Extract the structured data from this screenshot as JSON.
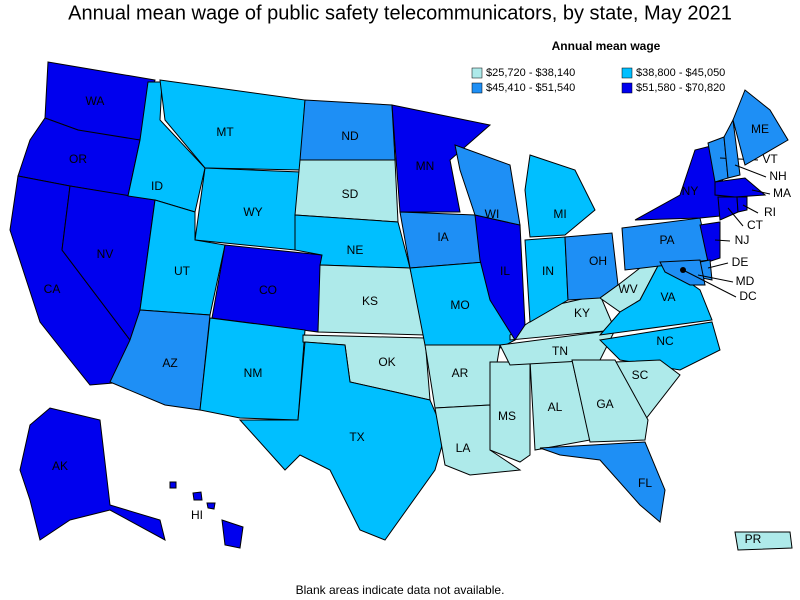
{
  "title": "Annual mean wage of public safety telecommunicators, by state, May 2021",
  "legend": {
    "title": "Annual mean wage",
    "items": [
      {
        "label": "$25,720 - $38,140",
        "color": "#aeeaea"
      },
      {
        "label": "$38,800 - $45,050",
        "color": "#00bfff"
      },
      {
        "label": "$45,410 - $51,540",
        "color": "#1e8ff5"
      },
      {
        "label": "$51,580 - $70,820",
        "color": "#0000ee"
      }
    ]
  },
  "states": [
    {
      "label": "WA",
      "color": "#0000ee"
    },
    {
      "label": "OR",
      "color": "#0000ee"
    },
    {
      "label": "CA",
      "color": "#0000ee"
    },
    {
      "label": "NV",
      "color": "#0000ee"
    },
    {
      "label": "ID",
      "color": "#00bfff"
    },
    {
      "label": "MT",
      "color": "#00bfff"
    },
    {
      "label": "WY",
      "color": "#00bfff"
    },
    {
      "label": "UT",
      "color": "#00bfff"
    },
    {
      "label": "CO",
      "color": "#0000ee"
    },
    {
      "label": "AZ",
      "color": "#1e8ff5"
    },
    {
      "label": "NM",
      "color": "#00bfff"
    },
    {
      "label": "ND",
      "color": "#1e8ff5"
    },
    {
      "label": "SD",
      "color": "#aeeaea"
    },
    {
      "label": "NE",
      "color": "#00bfff"
    },
    {
      "label": "KS",
      "color": "#aeeaea"
    },
    {
      "label": "OK",
      "color": "#aeeaea"
    },
    {
      "label": "TX",
      "color": "#00bfff"
    },
    {
      "label": "MN",
      "color": "#0000ee"
    },
    {
      "label": "IA",
      "color": "#1e8ff5"
    },
    {
      "label": "MO",
      "color": "#00bfff"
    },
    {
      "label": "AR",
      "color": "#aeeaea"
    },
    {
      "label": "LA",
      "color": "#aeeaea"
    },
    {
      "label": "MS",
      "color": "#aeeaea"
    },
    {
      "label": "AL",
      "color": "#aeeaea"
    },
    {
      "label": "TN",
      "color": "#aeeaea"
    },
    {
      "label": "KY",
      "color": "#aeeaea"
    },
    {
      "label": "IL",
      "color": "#0000ee"
    },
    {
      "label": "WI",
      "color": "#1e8ff5"
    },
    {
      "label": "MI",
      "color": "#00bfff"
    },
    {
      "label": "IN",
      "color": "#00bfff"
    },
    {
      "label": "OH",
      "color": "#1e8ff5"
    },
    {
      "label": "WV",
      "color": "#aeeaea"
    },
    {
      "label": "VA",
      "color": "#00bfff"
    },
    {
      "label": "NC",
      "color": "#00bfff"
    },
    {
      "label": "SC",
      "color": "#aeeaea"
    },
    {
      "label": "GA",
      "color": "#aeeaea"
    },
    {
      "label": "FL",
      "color": "#1e8ff5"
    },
    {
      "label": "PA",
      "color": "#1e8ff5"
    },
    {
      "label": "NY",
      "color": "#0000ee"
    },
    {
      "label": "VT",
      "color": "#1e8ff5"
    },
    {
      "label": "NH",
      "color": "#1e8ff5"
    },
    {
      "label": "ME",
      "color": "#1e8ff5"
    },
    {
      "label": "MA",
      "color": "#0000ee"
    },
    {
      "label": "CT",
      "color": "#0000ee"
    },
    {
      "label": "RI",
      "color": "#0000ee"
    },
    {
      "label": "NJ",
      "color": "#0000ee"
    },
    {
      "label": "DE",
      "color": "#1e8ff5"
    },
    {
      "label": "MD",
      "color": "#1e8ff5"
    },
    {
      "label": "DC",
      "color": "#000000"
    },
    {
      "label": "AK",
      "color": "#0000ee"
    },
    {
      "label": "HI",
      "color": "#0000ee"
    },
    {
      "label": "PR",
      "color": "#aeeaea"
    }
  ],
  "note": "Blank areas indicate data not available."
}
